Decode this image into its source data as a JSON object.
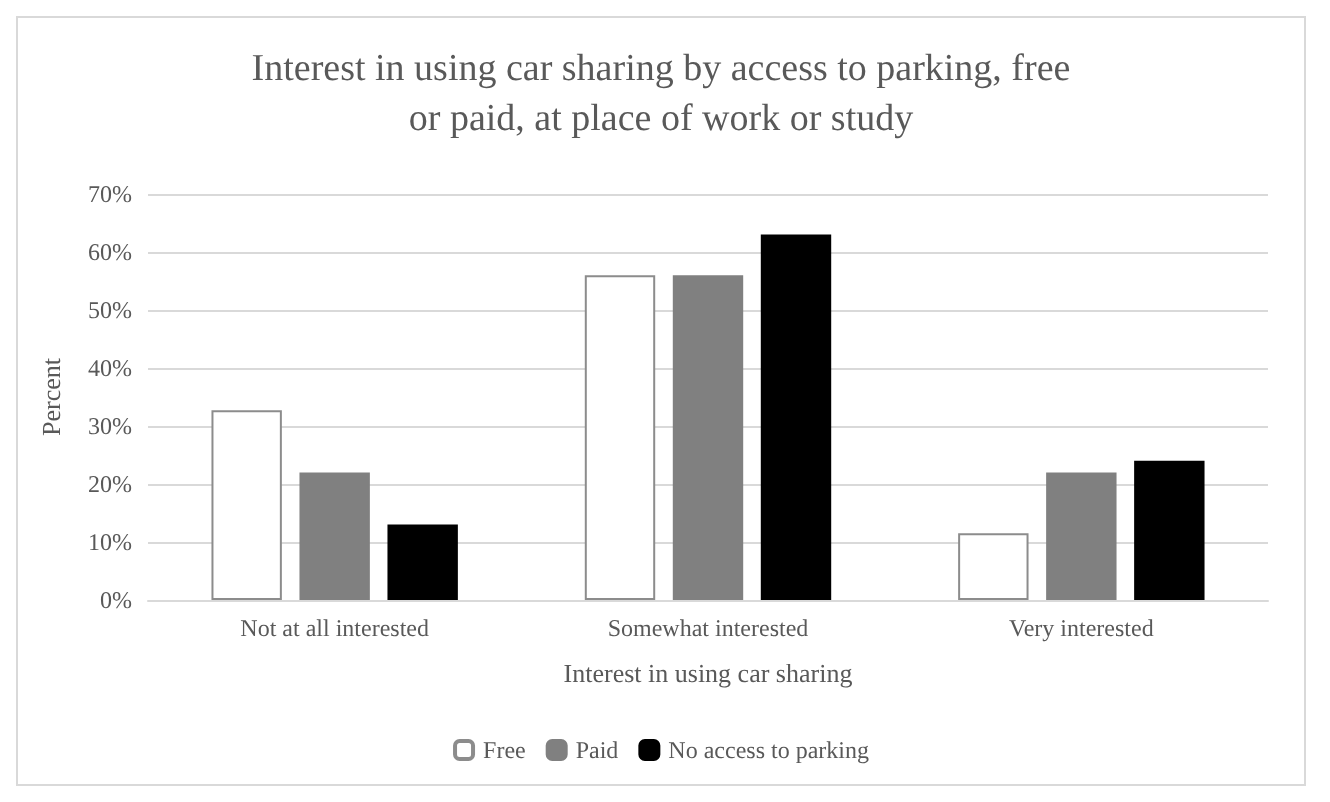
{
  "chart_data": {
    "type": "bar",
    "title": "Interest in using car sharing by access to parking, free\nor paid, at place of work or study",
    "xlabel": "Interest in using car sharing",
    "ylabel": "Percent",
    "categories": [
      "Not at all interested",
      "Somewhat interested",
      "Very interested"
    ],
    "series": [
      {
        "name": "Free",
        "color": "#ffffff",
        "values": [
          32.7,
          56,
          11.5
        ]
      },
      {
        "name": "Paid",
        "color": "#808080",
        "values": [
          22,
          56,
          22
        ]
      },
      {
        "name": "No access to parking",
        "color": "#000000",
        "values": [
          13,
          63,
          24
        ]
      }
    ],
    "ylim": [
      0,
      70
    ],
    "yticks": [
      {
        "value": 0,
        "label": "0%"
      },
      {
        "value": 10,
        "label": "10%"
      },
      {
        "value": 20,
        "label": "20%"
      },
      {
        "value": 30,
        "label": "30%"
      },
      {
        "value": 40,
        "label": "40%"
      },
      {
        "value": 50,
        "label": "50%"
      },
      {
        "value": 60,
        "label": "60%"
      },
      {
        "value": 70,
        "label": "70%"
      }
    ],
    "grid": "y",
    "legend": "bottom"
  }
}
